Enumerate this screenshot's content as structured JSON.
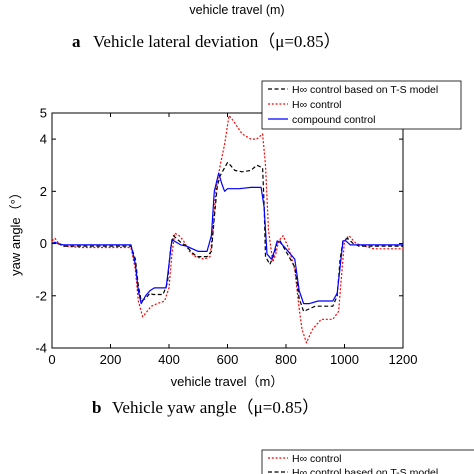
{
  "top_caption": {
    "xlabel": "vehicle travel (m)",
    "panel_letter": "a",
    "title": "Vehicle lateral deviation（μ=0.85）"
  },
  "chart_data": [
    {
      "type": "line",
      "panel_letter": "b",
      "title": "Vehicle yaw angle（μ=0.85）",
      "xlabel": "vehicle travel（m）",
      "ylabel": "yaw angle（°）",
      "xlim": [
        0,
        1200
      ],
      "ylim": [
        -4,
        5
      ],
      "x_ticks": [
        0,
        200,
        400,
        600,
        800,
        1000,
        1200
      ],
      "y_ticks": [
        -4,
        -2,
        0,
        2,
        4,
        5
      ],
      "grid": false,
      "legend_position": "top-right",
      "series": [
        {
          "name": "H∞ control based on T-S model",
          "color": "#000000",
          "dash": "dashed",
          "x": [
            0,
            10,
            20,
            40,
            100,
            270,
            285,
            295,
            305,
            320,
            335,
            345,
            360,
            380,
            395,
            405,
            415,
            425,
            440,
            460,
            475,
            495,
            530,
            545,
            555,
            565,
            575,
            590,
            600,
            610,
            625,
            650,
            680,
            700,
            720,
            725,
            730,
            745,
            760,
            770,
            780,
            800,
            830,
            845,
            860,
            880,
            900,
            960,
            975,
            985,
            995,
            1010,
            1030,
            1050,
            1100,
            1200
          ],
          "y": [
            0,
            0.05,
            0,
            -0.1,
            -0.1,
            -0.1,
            -0.6,
            -1.6,
            -2.2,
            -2.1,
            -1.9,
            -1.95,
            -1.95,
            -1.95,
            -1.5,
            -0.2,
            0.3,
            0.2,
            0.05,
            -0.1,
            -0.3,
            -0.5,
            -0.5,
            -0.3,
            1.0,
            2.2,
            2.6,
            2.9,
            3.1,
            3.0,
            2.8,
            2.75,
            2.8,
            3.0,
            2.9,
            1.5,
            -0.5,
            -0.8,
            -0.4,
            0.05,
            0.1,
            -0.3,
            -0.9,
            -2.1,
            -2.6,
            -2.5,
            -2.4,
            -2.4,
            -2.0,
            -0.6,
            0.1,
            0.2,
            0.0,
            -0.1,
            -0.1,
            -0.1
          ]
        },
        {
          "name": "H∞ control",
          "color": "#ff0000",
          "dash": "dotted",
          "x": [
            0,
            10,
            20,
            40,
            100,
            270,
            285,
            295,
            310,
            325,
            340,
            360,
            385,
            400,
            410,
            420,
            435,
            450,
            470,
            490,
            520,
            540,
            550,
            560,
            575,
            590,
            605,
            620,
            650,
            680,
            700,
            720,
            730,
            740,
            755,
            765,
            775,
            790,
            810,
            830,
            845,
            855,
            870,
            890,
            920,
            960,
            980,
            990,
            1000,
            1015,
            1040,
            1100,
            1200
          ],
          "y": [
            0.1,
            0.2,
            0.05,
            -0.1,
            -0.15,
            -0.15,
            -1.0,
            -2.2,
            -2.8,
            -2.6,
            -2.4,
            -2.3,
            -2.2,
            -1.7,
            -0.4,
            0.4,
            0.3,
            0.1,
            -0.3,
            -0.5,
            -0.6,
            -0.5,
            0.5,
            2.0,
            3.0,
            3.8,
            4.9,
            4.7,
            4.2,
            4.0,
            4.0,
            4.2,
            3.0,
            0.5,
            -0.7,
            -0.4,
            0.1,
            0.3,
            -0.2,
            -1.0,
            -2.5,
            -3.3,
            -3.8,
            -3.3,
            -2.9,
            -2.9,
            -2.6,
            -1.2,
            0.1,
            0.3,
            0.0,
            -0.2,
            -0.2
          ]
        },
        {
          "name": "compound control",
          "color": "#0000ff",
          "dash": "solid",
          "x": [
            0,
            10,
            20,
            40,
            100,
            270,
            285,
            295,
            305,
            320,
            335,
            350,
            370,
            390,
            400,
            410,
            425,
            440,
            460,
            480,
            500,
            530,
            545,
            555,
            570,
            580,
            590,
            600,
            615,
            640,
            680,
            715,
            725,
            735,
            750,
            760,
            770,
            780,
            800,
            830,
            845,
            860,
            880,
            910,
            960,
            975,
            985,
            995,
            1005,
            1020,
            1040,
            1100,
            1200
          ],
          "y": [
            0,
            0.05,
            0,
            -0.05,
            -0.05,
            -0.05,
            -0.8,
            -1.8,
            -2.3,
            -2.0,
            -1.8,
            -1.7,
            -1.7,
            -1.7,
            -0.8,
            0.15,
            0.05,
            -0.05,
            -0.1,
            -0.2,
            -0.3,
            -0.3,
            0.3,
            2.0,
            2.7,
            2.3,
            2.0,
            2.1,
            2.1,
            2.1,
            2.15,
            2.15,
            1.4,
            -0.4,
            -0.6,
            -0.3,
            0.1,
            0.05,
            -0.2,
            -0.6,
            -1.8,
            -2.3,
            -2.3,
            -2.2,
            -2.2,
            -1.9,
            -0.9,
            0.1,
            0.1,
            -0.05,
            -0.05,
            -0.05,
            -0.05
          ]
        }
      ]
    }
  ],
  "bottom_legend": {
    "entries": [
      {
        "name": "H∞ control",
        "color": "#ff0000",
        "dash": "dotted"
      },
      {
        "name": "H∞ control based on T-S model",
        "color": "#000000",
        "dash": "dashed"
      }
    ]
  }
}
